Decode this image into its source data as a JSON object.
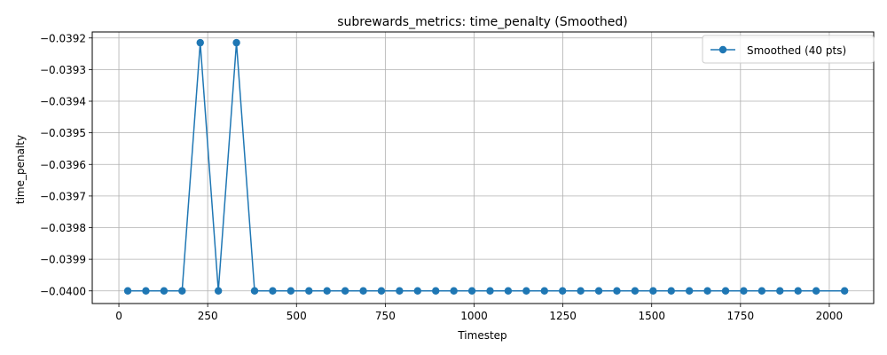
{
  "chart_data": {
    "type": "line",
    "title": "subrewards_metrics: time_penalty (Smoothed)",
    "xlabel": "Timestep",
    "ylabel": "time_penalty",
    "xlim": [
      -75,
      2125
    ],
    "ylim": [
      -0.04004,
      -0.039181
    ],
    "xticks": [
      0,
      250,
      500,
      750,
      1000,
      1250,
      1500,
      1750,
      2000
    ],
    "xtick_labels": [
      "0",
      "250",
      "500",
      "750",
      "1000",
      "1250",
      "1500",
      "1750",
      "2000"
    ],
    "yticks": [
      -0.0392,
      -0.0393,
      -0.0394,
      -0.0395,
      -0.0396,
      -0.0397,
      -0.0398,
      -0.0399,
      -0.04
    ],
    "ytick_labels": [
      "−0.0392",
      "−0.0393",
      "−0.0394",
      "−0.0395",
      "−0.0396",
      "−0.0397",
      "−0.0398",
      "−0.0399",
      "−0.0400"
    ],
    "grid": true,
    "legend_position": "top-right",
    "series": [
      {
        "name": "Smoothed (40 pts)",
        "color": "#1f77b4",
        "marker": "circle",
        "x": [
          25,
          76,
          127,
          178,
          229,
          280,
          331,
          382,
          433,
          484,
          535,
          586,
          637,
          688,
          739,
          790,
          841,
          892,
          943,
          994,
          1045,
          1096,
          1147,
          1198,
          1249,
          1300,
          1351,
          1402,
          1453,
          1504,
          1555,
          1606,
          1657,
          1708,
          1759,
          1810,
          1861,
          1912,
          1963,
          2043
        ],
        "y": [
          -0.04,
          -0.04,
          -0.04,
          -0.04,
          -0.039215,
          -0.04,
          -0.039215,
          -0.04,
          -0.04,
          -0.04,
          -0.04,
          -0.04,
          -0.04,
          -0.04,
          -0.04,
          -0.04,
          -0.04,
          -0.04,
          -0.04,
          -0.04,
          -0.04,
          -0.04,
          -0.04,
          -0.04,
          -0.04,
          -0.04,
          -0.04,
          -0.04,
          -0.04,
          -0.04,
          -0.04,
          -0.04,
          -0.04,
          -0.04,
          -0.04,
          -0.04,
          -0.04,
          -0.04,
          -0.04,
          -0.04
        ]
      }
    ]
  }
}
